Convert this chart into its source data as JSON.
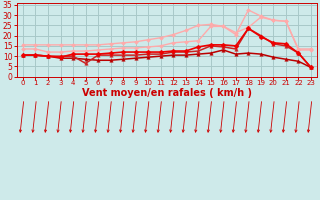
{
  "bg_color": "#ceeaea",
  "grid_color": "#a8c8c8",
  "xlabel": "Vent moyen/en rafales ( km/h )",
  "xlabel_color": "#cc0000",
  "xlabel_fontsize": 7,
  "tick_color": "#cc0000",
  "xlim": [
    -0.5,
    23.5
  ],
  "ylim": [
    0,
    36
  ],
  "yticks": [
    0,
    5,
    10,
    15,
    20,
    25,
    30,
    35
  ],
  "xticks": [
    0,
    1,
    2,
    3,
    4,
    5,
    6,
    7,
    8,
    9,
    10,
    11,
    12,
    13,
    14,
    15,
    16,
    17,
    18,
    19,
    20,
    21,
    22,
    23
  ],
  "lines": [
    {
      "x": [
        0,
        1,
        2,
        3,
        4,
        5,
        6,
        7,
        8,
        9,
        10,
        11,
        12,
        13,
        14,
        15,
        16,
        17,
        18,
        19,
        20,
        21,
        22,
        23
      ],
      "y": [
        15.5,
        15.5,
        15.5,
        15.5,
        15.5,
        15.5,
        15.5,
        16.0,
        16.5,
        17.0,
        18.0,
        19.0,
        20.5,
        22.5,
        25.0,
        25.5,
        24.5,
        20.5,
        32.5,
        29.5,
        27.5,
        27.0,
        13.5,
        13.5
      ],
      "color": "#ffaaaa",
      "lw": 1.0,
      "marker": "D",
      "ms": 2.0,
      "zorder": 2
    },
    {
      "x": [
        0,
        1,
        2,
        3,
        4,
        5,
        6,
        7,
        8,
        9,
        10,
        11,
        12,
        13,
        14,
        15,
        16,
        17,
        18,
        19,
        20,
        21,
        22,
        23
      ],
      "y": [
        13.5,
        13.5,
        12.0,
        12.0,
        12.5,
        12.5,
        13.0,
        13.5,
        14.0,
        14.0,
        14.5,
        15.0,
        16.5,
        17.0,
        17.5,
        24.5,
        24.5,
        21.5,
        24.0,
        29.0,
        27.5,
        27.0,
        13.0,
        13.0
      ],
      "color": "#ffaaaa",
      "lw": 1.0,
      "marker": "D",
      "ms": 2.0,
      "zorder": 2
    },
    {
      "x": [
        0,
        1,
        2,
        3,
        4,
        5,
        6,
        7,
        8,
        9,
        10,
        11,
        12,
        13,
        14,
        15,
        16,
        17,
        18,
        19,
        20,
        21,
        22,
        23
      ],
      "y": [
        10.5,
        10.5,
        10.0,
        9.5,
        11.0,
        11.0,
        11.0,
        11.5,
        12.0,
        12.0,
        12.0,
        12.0,
        12.5,
        12.5,
        14.5,
        15.5,
        15.5,
        15.0,
        23.5,
        19.5,
        16.5,
        16.0,
        11.5,
        4.5
      ],
      "color": "#ee0000",
      "lw": 1.2,
      "marker": "D",
      "ms": 2.5,
      "zorder": 4
    },
    {
      "x": [
        0,
        1,
        2,
        3,
        4,
        5,
        6,
        7,
        8,
        9,
        10,
        11,
        12,
        13,
        14,
        15,
        16,
        17,
        18,
        19,
        20,
        21,
        22,
        23
      ],
      "y": [
        10.5,
        10.5,
        10.0,
        9.0,
        9.0,
        8.5,
        8.0,
        8.0,
        8.5,
        9.0,
        9.5,
        10.0,
        10.5,
        10.5,
        11.0,
        11.5,
        13.0,
        11.0,
        11.5,
        11.0,
        9.5,
        8.5,
        7.5,
        4.5
      ],
      "color": "#bb0000",
      "lw": 1.1,
      "marker": "^",
      "ms": 2.5,
      "zorder": 3
    },
    {
      "x": [
        0,
        1,
        2,
        3,
        4,
        5,
        6,
        7,
        8,
        9,
        10,
        11,
        12,
        13,
        14,
        15,
        16,
        17,
        18,
        19,
        20,
        21,
        22,
        23
      ],
      "y": [
        10.5,
        10.5,
        10.0,
        10.0,
        10.0,
        6.5,
        10.5,
        10.5,
        10.5,
        10.5,
        11.0,
        11.0,
        12.0,
        12.0,
        12.5,
        15.0,
        14.5,
        13.5,
        23.5,
        20.0,
        16.0,
        15.0,
        11.5,
        4.5
      ],
      "color": "#cc2222",
      "lw": 1.1,
      "marker": "^",
      "ms": 2.5,
      "zorder": 3
    }
  ]
}
